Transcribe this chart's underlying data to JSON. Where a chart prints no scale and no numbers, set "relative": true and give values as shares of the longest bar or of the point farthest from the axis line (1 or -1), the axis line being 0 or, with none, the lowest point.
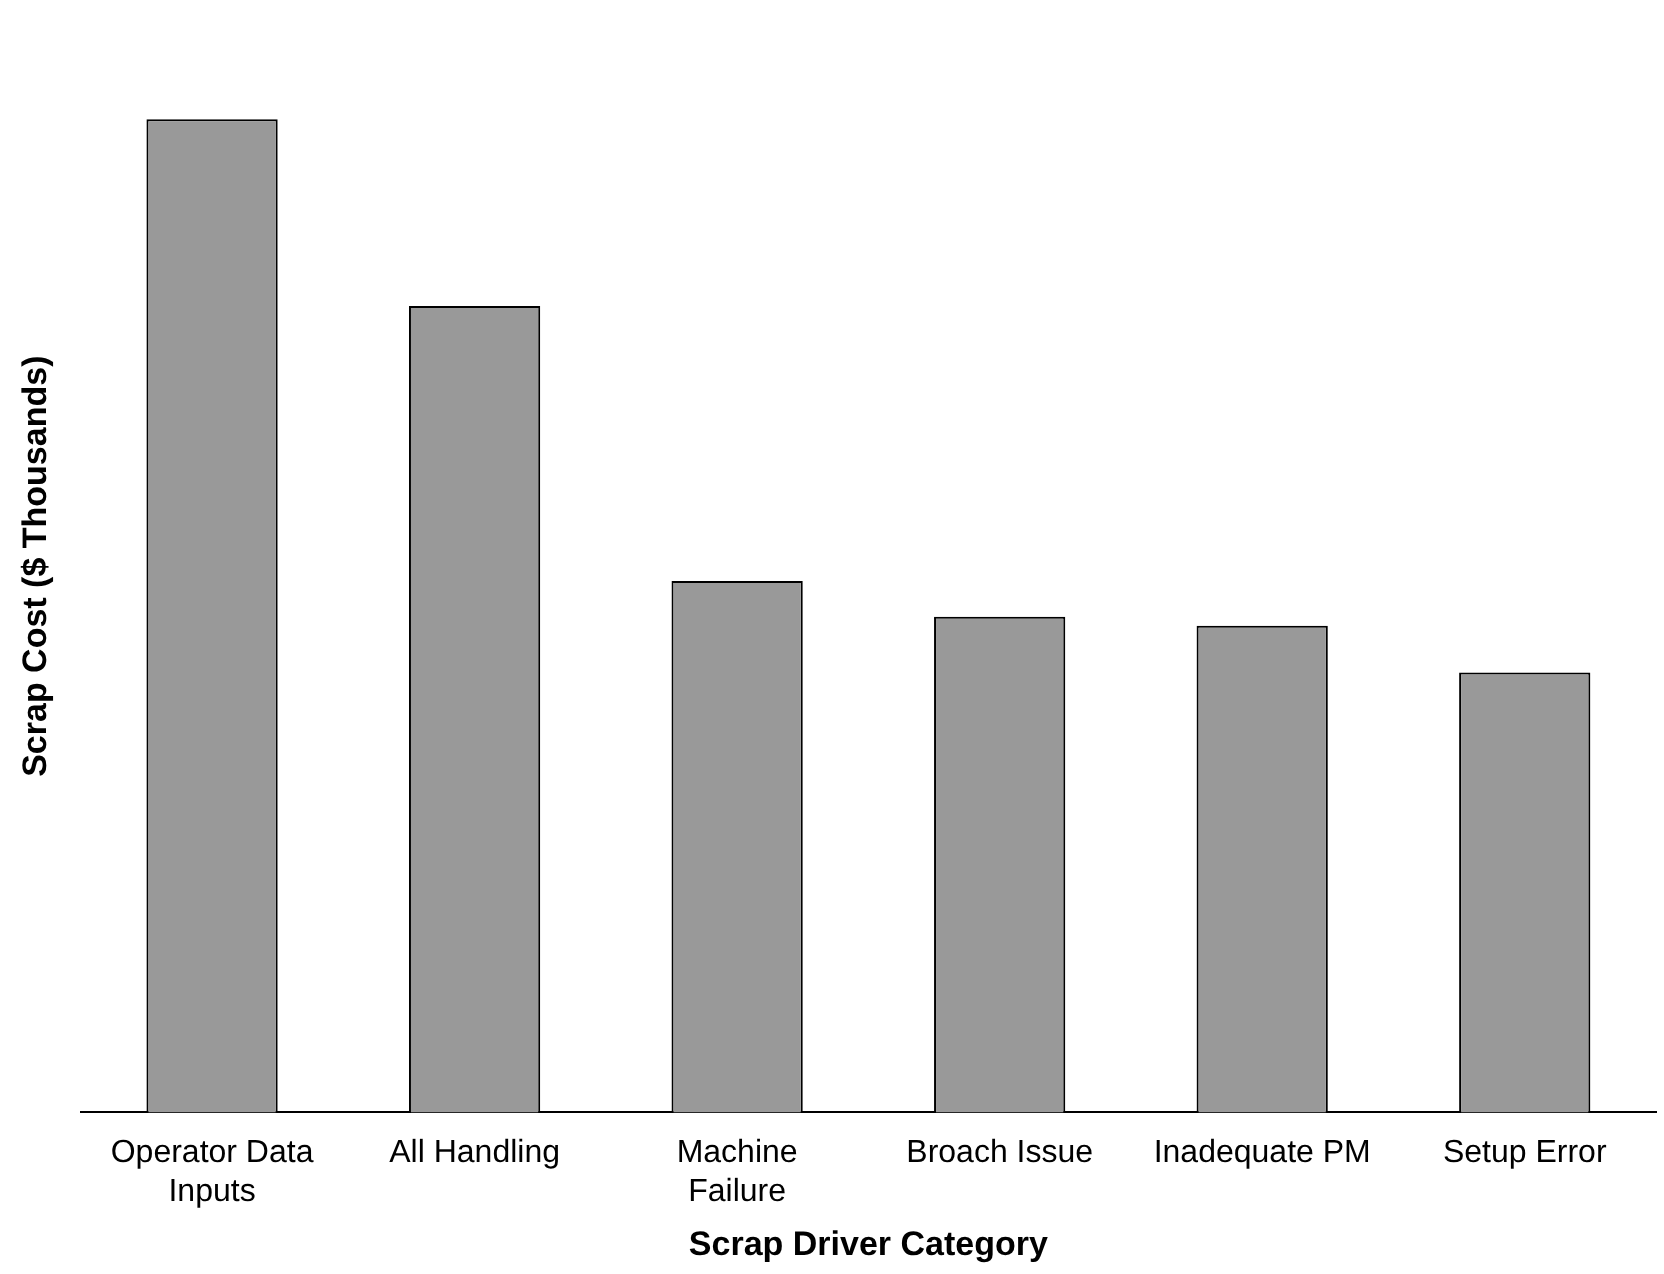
{
  "chart_data": {
    "type": "bar",
    "xlabel": "Scrap Driver Category",
    "ylabel": "Scrap Cost ($ Thousands)",
    "categories": [
      "Operator Data Inputs",
      "All Handling",
      "Machine Failure",
      "Broach Issue",
      "Inadequate PM",
      "Setup Error"
    ],
    "values": [
      1,
      0.812,
      0.535,
      0.499,
      0.49,
      0.443
    ],
    "color": "#999999",
    "relative": true,
    "grid": false,
    "legend": false
  }
}
